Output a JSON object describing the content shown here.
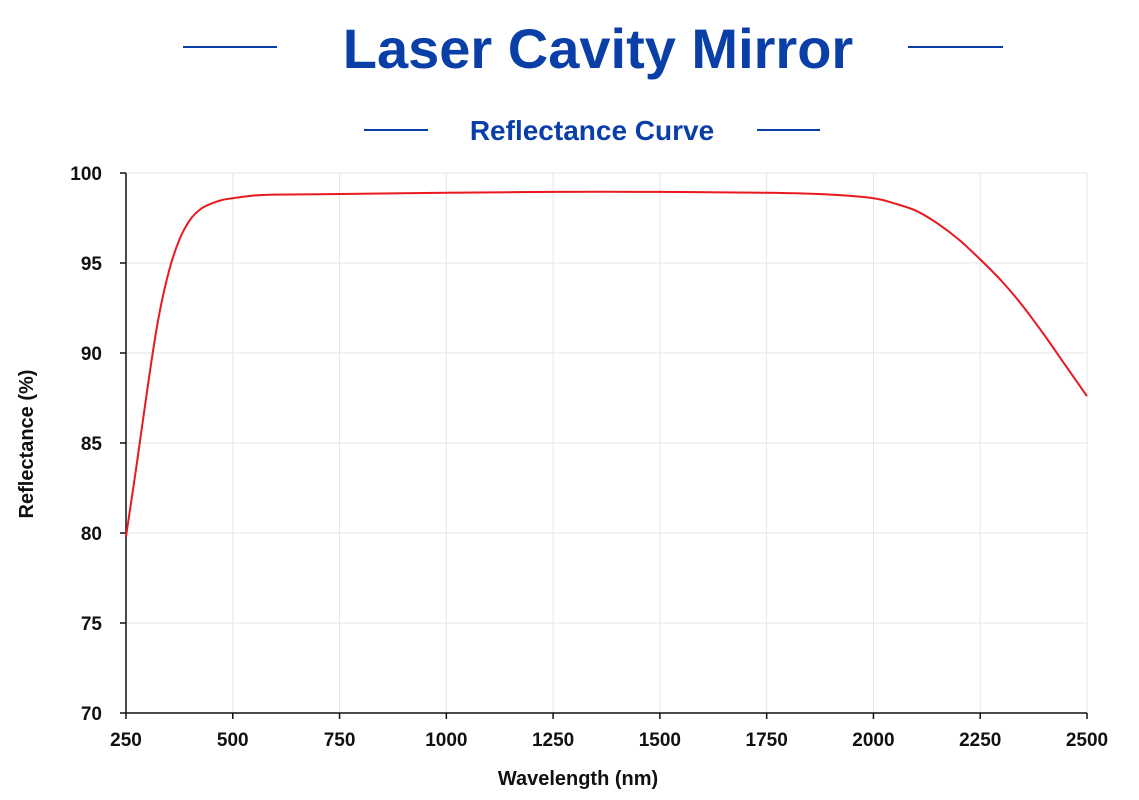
{
  "chart_data": {
    "type": "line",
    "title": "Laser Cavity Mirror",
    "subtitle": "Reflectance Curve",
    "xlabel": "Wavelength (nm)",
    "ylabel": "Reflectance (%)",
    "xlim": [
      250,
      2500
    ],
    "ylim": [
      70,
      100
    ],
    "xticks": [
      250,
      500,
      750,
      1000,
      1250,
      1500,
      1750,
      2000,
      2250,
      2500
    ],
    "yticks": [
      70,
      75,
      80,
      85,
      90,
      95,
      100
    ],
    "grid": true,
    "series": [
      {
        "color": "#e8191f",
        "x": [
          250,
          275,
          300,
          325,
          350,
          375,
          400,
          425,
          450,
          475,
          500,
          550,
          600,
          700,
          800,
          1000,
          1250,
          1500,
          1750,
          1900,
          2000,
          2050,
          2100,
          2150,
          2200,
          2250,
          2300,
          2350,
          2400,
          2450,
          2500
        ],
        "y": [
          79.8,
          83.8,
          88.0,
          91.8,
          94.5,
          96.3,
          97.4,
          98.0,
          98.3,
          98.5,
          98.6,
          98.75,
          98.8,
          98.82,
          98.85,
          98.9,
          98.95,
          98.95,
          98.9,
          98.8,
          98.6,
          98.3,
          97.9,
          97.2,
          96.3,
          95.2,
          94.0,
          92.6,
          91.0,
          89.3,
          87.6
        ]
      }
    ]
  },
  "colors": {
    "title": "#0a3fa8",
    "line": "#e8191f",
    "grid": "#e6e6e6",
    "axis": "#111111"
  }
}
